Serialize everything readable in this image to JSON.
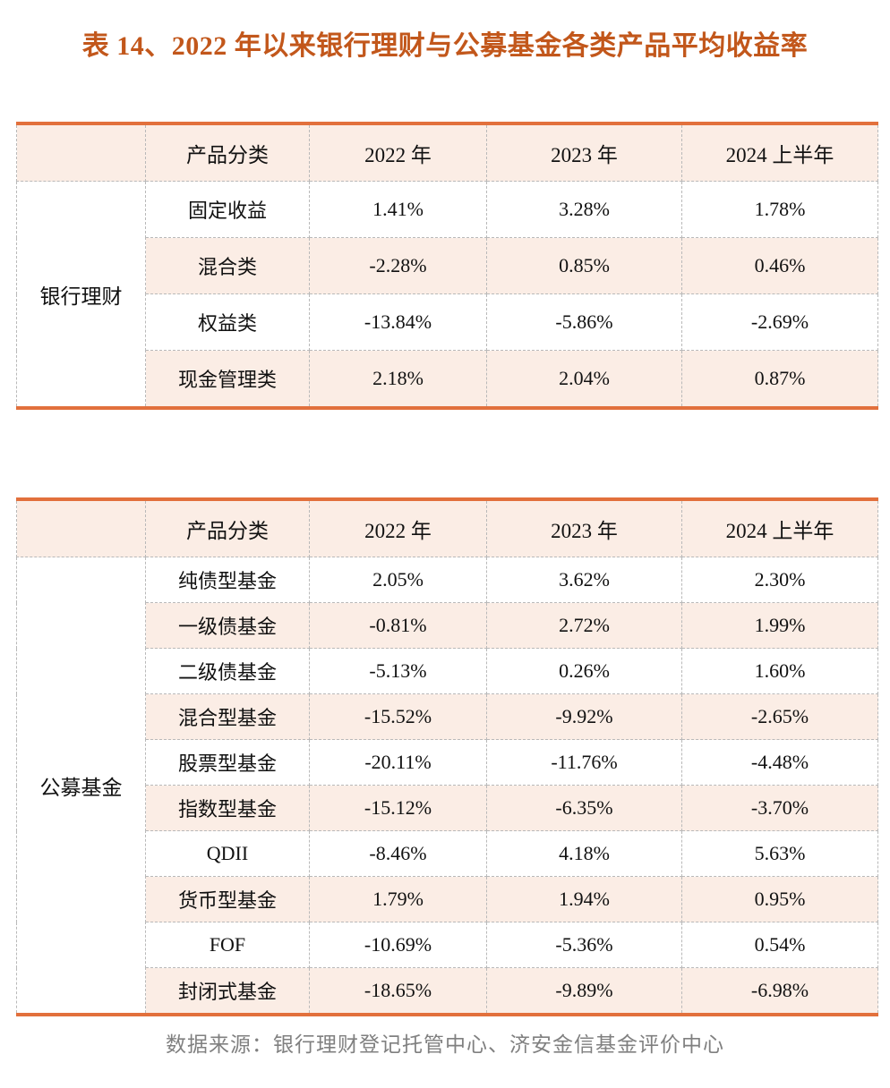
{
  "title": "表 14、2022 年以来银行理财与公募基金各类产品平均收益率",
  "footer": "数据来源：银行理财登记托管中心、济安金信基金评价中心",
  "colors": {
    "accent_border_orange": "#E2703C",
    "title_orange": "#C2571B",
    "row_shade_peach": "#FBEDE5",
    "dashed_border_gray": "#B9B9B9",
    "footer_gray": "#808080",
    "text_black": "#111111"
  },
  "tables": [
    {
      "group_label": "银行理财",
      "headers": [
        "产品分类",
        "2022 年",
        "2023 年",
        "2024 上半年"
      ],
      "rows": [
        {
          "label": "固定收益",
          "values": [
            "1.41%",
            "3.28%",
            "1.78%"
          ]
        },
        {
          "label": "混合类",
          "values": [
            "-2.28%",
            "0.85%",
            "0.46%"
          ]
        },
        {
          "label": "权益类",
          "values": [
            "-13.84%",
            "-5.86%",
            "-2.69%"
          ]
        },
        {
          "label": "现金管理类",
          "values": [
            "2.18%",
            "2.04%",
            "0.87%"
          ]
        }
      ]
    },
    {
      "group_label": "公募基金",
      "headers": [
        "产品分类",
        "2022 年",
        "2023 年",
        "2024 上半年"
      ],
      "rows": [
        {
          "label": "纯债型基金",
          "values": [
            "2.05%",
            "3.62%",
            "2.30%"
          ]
        },
        {
          "label": "一级债基金",
          "values": [
            "-0.81%",
            "2.72%",
            "1.99%"
          ]
        },
        {
          "label": "二级债基金",
          "values": [
            "-5.13%",
            "0.26%",
            "1.60%"
          ]
        },
        {
          "label": "混合型基金",
          "values": [
            "-15.52%",
            "-9.92%",
            "-2.65%"
          ]
        },
        {
          "label": "股票型基金",
          "values": [
            "-20.11%",
            "-11.76%",
            "-4.48%"
          ]
        },
        {
          "label": "指数型基金",
          "values": [
            "-15.12%",
            "-6.35%",
            "-3.70%"
          ]
        },
        {
          "label": "QDII",
          "values": [
            "-8.46%",
            "4.18%",
            "5.63%"
          ]
        },
        {
          "label": "货币型基金",
          "values": [
            "1.79%",
            "1.94%",
            "0.95%"
          ]
        },
        {
          "label": "FOF",
          "values": [
            "-10.69%",
            "-5.36%",
            "0.54%"
          ]
        },
        {
          "label": "封闭式基金",
          "values": [
            "-18.65%",
            "-9.89%",
            "-6.98%"
          ]
        }
      ]
    }
  ]
}
